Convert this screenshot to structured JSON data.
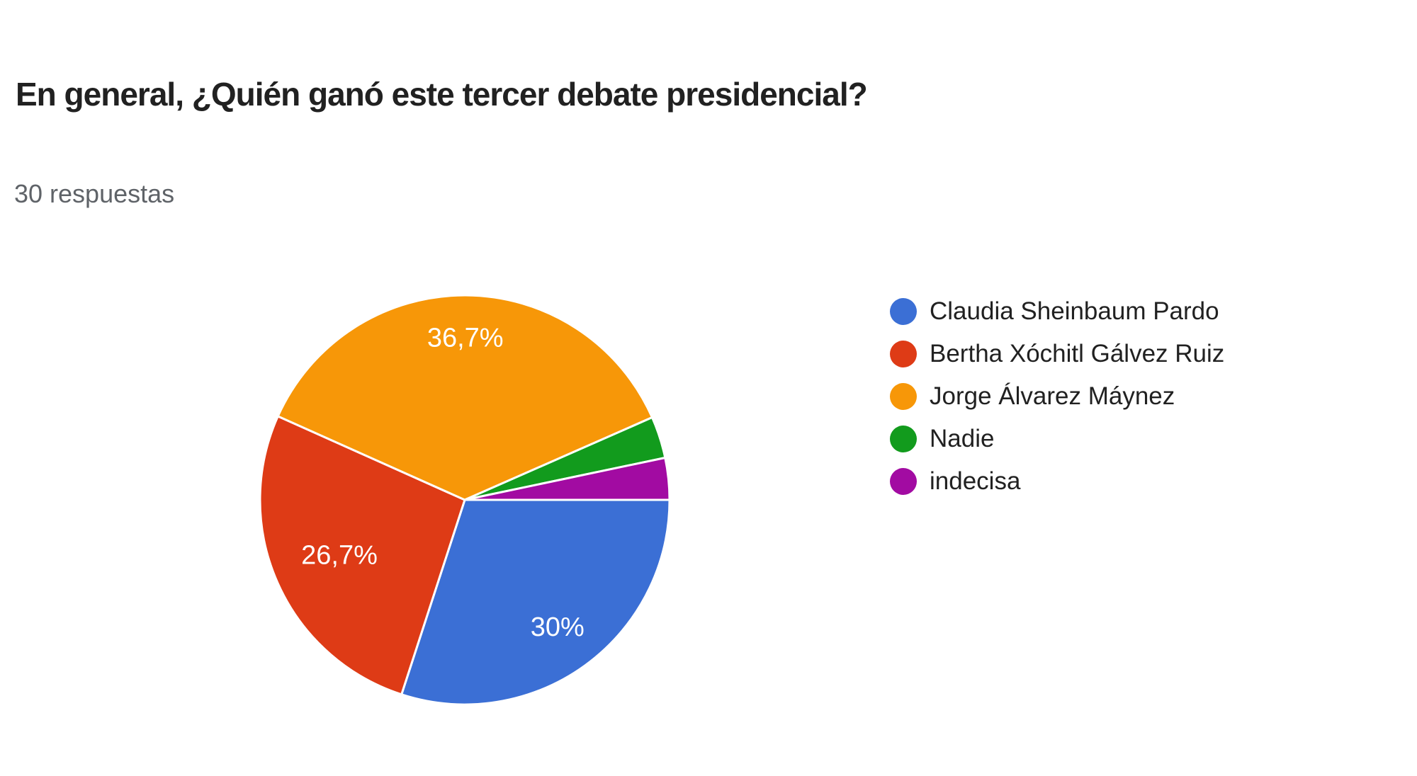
{
  "page": {
    "title": "En general, ¿Quién ganó este tercer debate presidencial?",
    "responses_label": "30 respuestas"
  },
  "chart_data": {
    "type": "pie",
    "title": "En general, ¿Quién ganó este tercer debate presidencial?",
    "subtitle": "30 respuestas",
    "total_responses": 30,
    "legend_position": "right",
    "start_angle_deg": 0,
    "direction": "clockwise",
    "series": [
      {
        "label": "Claudia Sheinbaum Pardo",
        "percent": 30,
        "display_label": "30%",
        "color": "#3b6fd5"
      },
      {
        "label": "Bertha Xóchitl Gálvez Ruiz",
        "percent": 26.7,
        "display_label": "26,7%",
        "color": "#de3b16"
      },
      {
        "label": "Jorge Álvarez Máynez",
        "percent": 36.7,
        "display_label": "36,7%",
        "color": "#f79708"
      },
      {
        "label": "Nadie",
        "percent": 3.3,
        "display_label": "",
        "color": "#129b1d"
      },
      {
        "label": "indecisa",
        "percent": 3.3,
        "display_label": "",
        "color": "#a20ba2"
      }
    ]
  }
}
